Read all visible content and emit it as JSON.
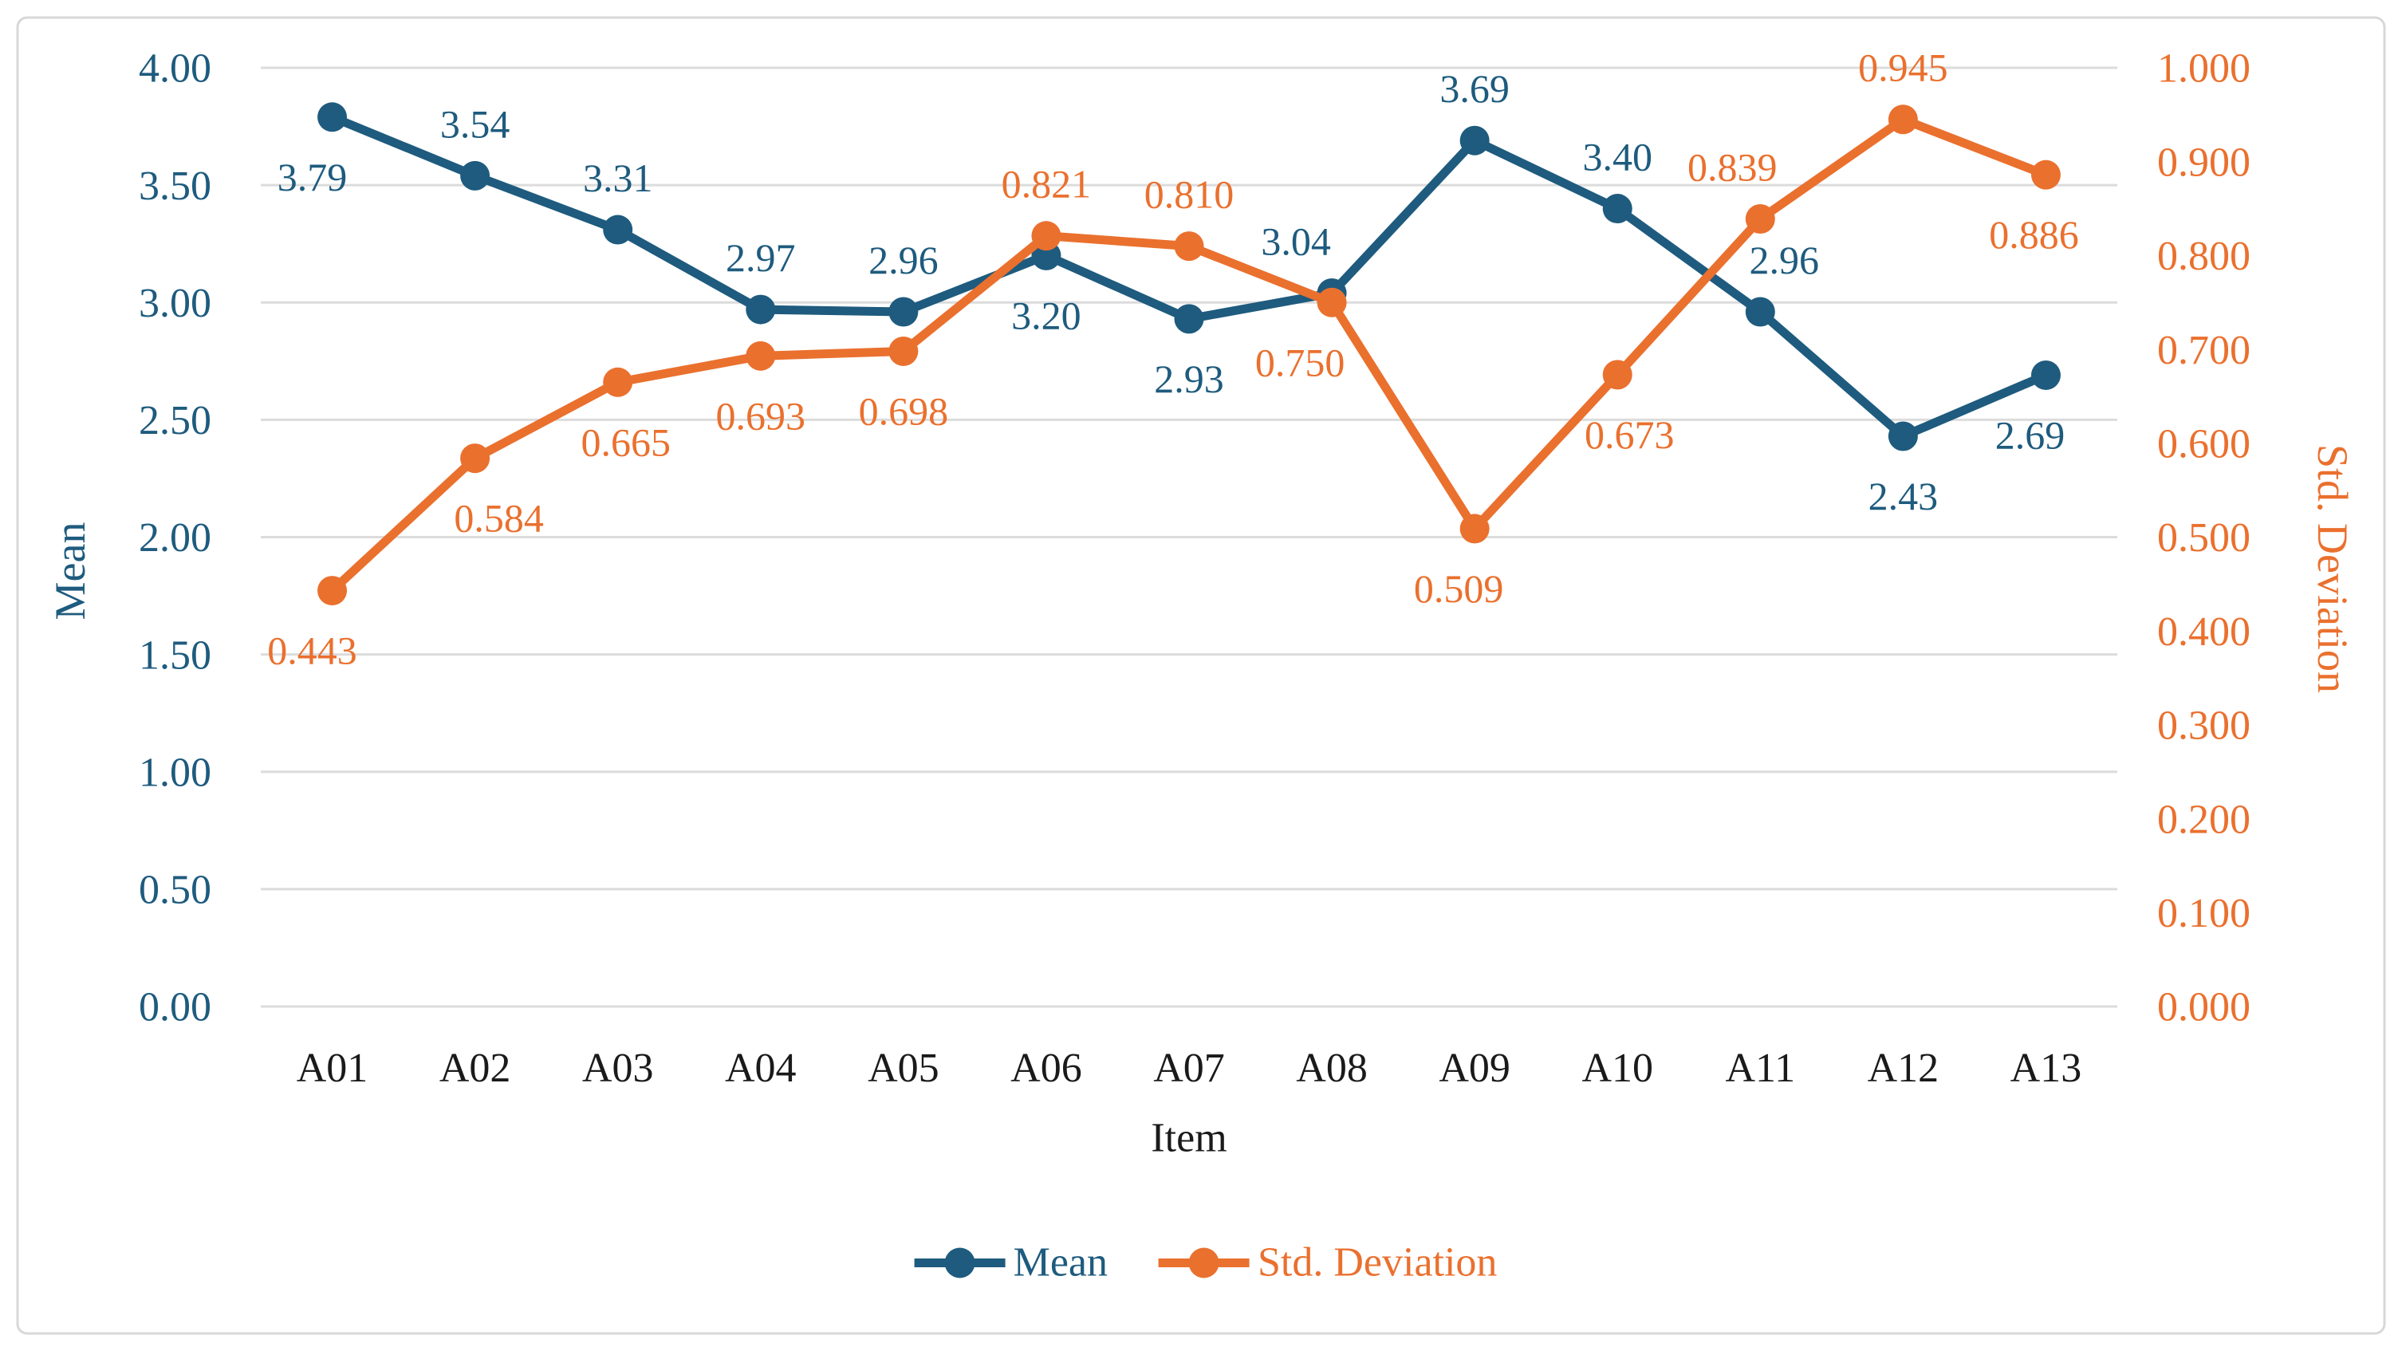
{
  "chart_data": {
    "type": "line",
    "categories": [
      "A01",
      "A02",
      "A03",
      "A04",
      "A05",
      "A06",
      "A07",
      "A08",
      "A09",
      "A10",
      "A11",
      "A12",
      "A13"
    ],
    "series": [
      {
        "name": "Mean",
        "axis": "left",
        "color": "#1E5B7E",
        "values": [
          3.79,
          3.54,
          3.31,
          2.97,
          2.96,
          3.2,
          2.93,
          3.04,
          3.69,
          3.4,
          2.96,
          2.43,
          2.69
        ],
        "labels": [
          "3.79",
          "3.54",
          "3.31",
          "2.97",
          "2.96",
          "3.20",
          "2.93",
          "3.04",
          "3.69",
          "3.40",
          "2.96",
          "2.43",
          "2.69"
        ],
        "label_side": [
          "below",
          "above",
          "above",
          "above",
          "above",
          "below",
          "below",
          "above",
          "above",
          "above",
          "above",
          "below",
          "below"
        ],
        "label_dx": [
          -25,
          0,
          0,
          0,
          0,
          0,
          0,
          -45,
          0,
          0,
          30,
          0,
          -20
        ]
      },
      {
        "name": "Std. Deviation",
        "axis": "right",
        "color": "#EA702E",
        "values": [
          0.443,
          0.584,
          0.665,
          0.693,
          0.698,
          0.821,
          0.81,
          0.75,
          0.509,
          0.673,
          0.839,
          0.945,
          0.886
        ],
        "labels": [
          "0.443",
          "0.584",
          "0.665",
          "0.693",
          "0.698",
          "0.821",
          "0.810",
          "0.750",
          "0.509",
          "0.673",
          "0.839",
          "0.945",
          "0.886"
        ],
        "label_side": [
          "below",
          "below",
          "below",
          "below",
          "below",
          "above",
          "above",
          "below",
          "below",
          "below",
          "above",
          "above",
          "below"
        ],
        "label_dx": [
          -25,
          30,
          10,
          0,
          0,
          0,
          0,
          -40,
          -20,
          15,
          -35,
          0,
          -15
        ]
      }
    ],
    "x_axis": {
      "title": "Item"
    },
    "left_axis": {
      "title": "Mean",
      "min": 0,
      "max": 4,
      "ticks": [
        "4.00",
        "3.50",
        "3.00",
        "2.50",
        "2.00",
        "1.50",
        "1.00",
        "0.50",
        "0.00"
      ]
    },
    "right_axis": {
      "title": "Std. Deviation",
      "min": 0,
      "max": 1,
      "ticks": [
        "1.000",
        "0.900",
        "0.800",
        "0.700",
        "0.600",
        "0.500",
        "0.400",
        "0.300",
        "0.200",
        "0.100",
        "0.000"
      ]
    },
    "legend": [
      {
        "label": "Mean",
        "color": "#1E5B7E"
      },
      {
        "label": "Std. Deviation",
        "color": "#EA702E"
      }
    ],
    "grid": true,
    "legend_position": "bottom"
  },
  "colors": {
    "mean": "#1E5B7E",
    "std": "#EA702E",
    "gridline": "#DCDCDC",
    "category_text": "#1A1A1A",
    "frame_border": "#D8D8D8"
  }
}
